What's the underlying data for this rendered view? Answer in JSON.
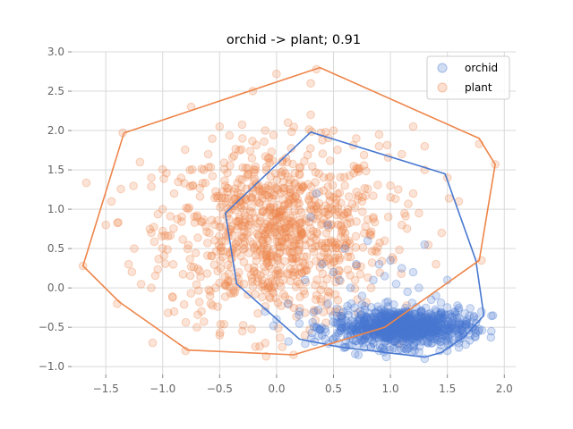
{
  "chart_data": {
    "type": "scatter",
    "title": "orchid -> plant; 0.91",
    "xlabel": "",
    "ylabel": "",
    "xlim": [
      -1.8,
      2.1
    ],
    "ylim": [
      -1.1,
      3.0
    ],
    "xticks": [
      -1.5,
      -1.0,
      -0.5,
      0.0,
      0.5,
      1.0,
      1.5,
      2.0
    ],
    "xtick_labels": [
      "−1.5",
      "−1.0",
      "−0.5",
      "0.0",
      "0.5",
      "1.0",
      "1.5",
      "2.0"
    ],
    "yticks": [
      -1.0,
      -0.5,
      0.0,
      0.5,
      1.0,
      1.5,
      2.0,
      2.5,
      3.0
    ],
    "ytick_labels": [
      "−1.0",
      "−0.5",
      "0.0",
      "0.5",
      "1.0",
      "1.5",
      "2.0",
      "2.5",
      "3.0"
    ],
    "grid": true,
    "legend": {
      "position": "top-right",
      "entries": [
        "orchid",
        "plant"
      ]
    },
    "series": [
      {
        "name": "orchid",
        "color": "#4878d0",
        "cluster": {
          "center": [
            1.1,
            -0.5
          ],
          "spread": [
            0.3,
            0.12
          ],
          "count": 900
        },
        "points": [
          [
            0.3,
            0.9
          ],
          [
            0.35,
            1.2
          ],
          [
            0.45,
            0.8
          ],
          [
            0.4,
            0.3
          ],
          [
            0.25,
            0.1
          ],
          [
            0.5,
            0.2
          ],
          [
            0.6,
            0.5
          ],
          [
            0.7,
            0.3
          ],
          [
            0.8,
            0.6
          ],
          [
            1.3,
            0.55
          ],
          [
            1.5,
            0.1
          ],
          [
            1.4,
            -0.1
          ],
          [
            0.2,
            -0.3
          ],
          [
            0.1,
            -0.2
          ],
          [
            0.0,
            -0.4
          ],
          [
            -0.1,
            -0.3
          ],
          [
            1.8,
            -0.3
          ],
          [
            1.9,
            -0.35
          ],
          [
            0.6,
            -0.75
          ],
          [
            0.9,
            -0.8
          ],
          [
            1.3,
            -0.9
          ],
          [
            1.5,
            -0.8
          ],
          [
            0.55,
            0.1
          ],
          [
            0.65,
            0.0
          ],
          [
            0.75,
            -0.1
          ],
          [
            0.85,
            0.1
          ],
          [
            0.95,
            0.15
          ],
          [
            1.05,
            0.05
          ],
          [
            1.15,
            -0.05
          ],
          [
            1.25,
            0.0
          ],
          [
            0.9,
            0.3
          ],
          [
            1.0,
            0.35
          ],
          [
            1.1,
            0.25
          ],
          [
            1.2,
            0.2
          ],
          [
            0.45,
            -0.2
          ],
          [
            0.35,
            -0.5
          ],
          [
            0.4,
            -0.6
          ],
          [
            1.6,
            -0.7
          ],
          [
            1.7,
            -0.6
          ],
          [
            1.75,
            -0.45
          ]
        ],
        "hull": [
          [
            0.3,
            1.98
          ],
          [
            1.48,
            1.45
          ],
          [
            1.75,
            0.35
          ],
          [
            1.82,
            -0.35
          ],
          [
            1.65,
            -0.62
          ],
          [
            1.45,
            -0.82
          ],
          [
            1.3,
            -0.88
          ],
          [
            0.55,
            -0.75
          ],
          [
            0.2,
            -0.65
          ],
          [
            -0.35,
            0.05
          ],
          [
            -0.45,
            0.95
          ]
        ]
      },
      {
        "name": "plant",
        "color": "#ee854a",
        "cluster": {
          "center": [
            0.0,
            0.7
          ],
          "spread": [
            0.48,
            0.55
          ],
          "count": 900
        },
        "points": [
          [
            -1.7,
            0.28
          ],
          [
            -1.35,
            1.97
          ],
          [
            0.35,
            2.78
          ],
          [
            0.0,
            2.72
          ],
          [
            1.78,
            1.83
          ],
          [
            1.92,
            1.57
          ],
          [
            -0.8,
            -0.8
          ],
          [
            0.15,
            -0.85
          ],
          [
            1.8,
            0.35
          ],
          [
            -1.45,
            1.1
          ],
          [
            -1.5,
            0.8
          ],
          [
            -1.4,
            -0.2
          ],
          [
            -1.3,
            0.3
          ],
          [
            -1.2,
            1.6
          ],
          [
            -1.1,
            1.4
          ],
          [
            -0.5,
            2.05
          ],
          [
            -0.3,
            1.9
          ],
          [
            -0.1,
            2.0
          ],
          [
            0.1,
            2.1
          ],
          [
            0.3,
            2.2
          ],
          [
            0.5,
            2.0
          ],
          [
            0.7,
            1.9
          ],
          [
            0.9,
            1.8
          ],
          [
            1.1,
            1.7
          ],
          [
            1.3,
            1.5
          ],
          [
            1.2,
            2.05
          ],
          [
            0.9,
            1.95
          ],
          [
            1.3,
            1.8
          ],
          [
            1.5,
            1.4
          ],
          [
            1.6,
            1.1
          ],
          [
            1.45,
            0.7
          ],
          [
            1.4,
            0.3
          ],
          [
            -0.6,
            1.7
          ],
          [
            -0.9,
            1.2
          ],
          [
            -1.0,
            1.0
          ],
          [
            -1.1,
            0.7
          ],
          [
            -1.25,
            0.5
          ],
          [
            -1.1,
            0.0
          ],
          [
            -0.9,
            -0.3
          ],
          [
            -0.7,
            -0.5
          ],
          [
            -0.5,
            -0.6
          ],
          [
            -0.3,
            -0.55
          ],
          [
            -0.1,
            -0.7
          ],
          [
            0.05,
            -0.75
          ],
          [
            0.25,
            -0.6
          ],
          [
            0.6,
            1.3
          ],
          [
            0.75,
            1.1
          ],
          [
            0.85,
            0.9
          ],
          [
            1.0,
            1.3
          ],
          [
            1.2,
            1.2
          ],
          [
            1.25,
            0.95
          ],
          [
            1.1,
            0.8
          ],
          [
            0.95,
            0.6
          ],
          [
            -0.2,
            1.5
          ],
          [
            0.05,
            1.6
          ],
          [
            0.2,
            1.45
          ],
          [
            -0.45,
            1.3
          ],
          [
            -0.7,
            0.9
          ],
          [
            0.3,
            2.6
          ],
          [
            -0.75,
            2.3
          ]
        ],
        "hull": [
          [
            -1.34,
            1.97
          ],
          [
            0.38,
            2.8
          ],
          [
            1.78,
            1.9
          ],
          [
            1.92,
            1.57
          ],
          [
            1.78,
            0.35
          ],
          [
            0.95,
            -0.5
          ],
          [
            0.15,
            -0.85
          ],
          [
            -0.78,
            -0.79
          ],
          [
            -1.38,
            -0.18
          ],
          [
            -1.7,
            0.28
          ]
        ]
      }
    ]
  }
}
